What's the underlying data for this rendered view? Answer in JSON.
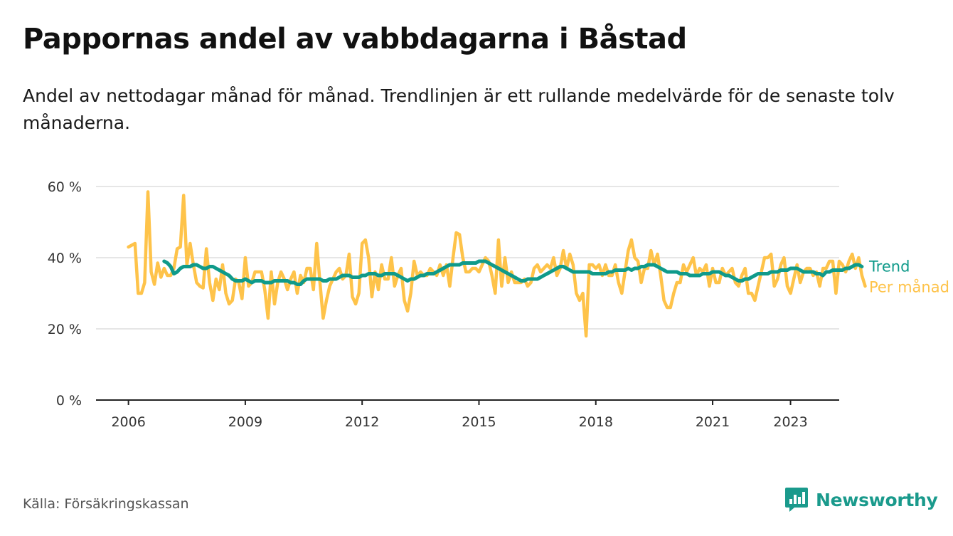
{
  "title": "Pappornas andel av vabbdagarna i Båstad",
  "subtitle": "Andel av nettodagar månad för månad. Trendlinjen är ett rullande medelvärde för de senaste tolv månaderna.",
  "source": "Källa: Försäkringskassan",
  "brand": {
    "name": "Newsworthy",
    "icon": "newsworthy-logo-icon",
    "color": "#1a9a8c"
  },
  "colors": {
    "monthly": "#fec34a",
    "trend": "#0f9a8a",
    "grid": "#dddddd",
    "axis": "#222222"
  },
  "chart_data": {
    "type": "line",
    "title": "Pappornas andel av vabbdagarna i Båstad",
    "x_start": "2006-01",
    "x_step": "month",
    "xlim": [
      "2005-03",
      "2024-04"
    ],
    "ylim": [
      0,
      60
    ],
    "y_ticks": [
      0,
      20,
      40,
      60
    ],
    "y_tick_labels": [
      "0 %",
      "20 %",
      "40 %",
      "60 %"
    ],
    "x_ticks": [
      "2006",
      "2009",
      "2012",
      "2015",
      "2018",
      "2021",
      "2023"
    ],
    "grid": true,
    "legend": "right-end",
    "series": [
      {
        "name": "Per månad",
        "values": [
          43,
          43.5,
          44,
          30,
          30,
          33,
          58.5,
          36,
          32.5,
          38.5,
          34.5,
          37,
          35,
          35,
          37,
          42.5,
          43,
          57.5,
          38,
          44,
          38,
          33,
          32,
          31.5,
          42.5,
          33,
          28,
          34,
          31,
          38,
          30,
          27,
          28,
          34,
          33,
          28.5,
          40,
          32,
          33,
          36,
          36,
          36,
          31,
          23,
          36,
          27,
          33,
          36,
          34,
          31,
          34,
          36,
          30,
          35,
          33,
          37,
          37,
          31,
          44,
          33,
          23,
          28,
          32,
          34,
          36,
          37,
          34,
          35,
          41,
          29,
          27,
          30,
          44,
          45,
          40,
          29,
          36,
          31,
          38,
          34,
          34,
          40,
          32,
          35,
          37,
          28,
          25,
          30,
          39,
          35,
          36,
          35,
          35,
          37,
          36,
          35,
          38,
          35,
          38,
          32,
          40,
          47,
          46.5,
          40,
          36,
          36,
          37,
          37,
          36,
          38,
          40,
          39,
          35,
          30,
          45,
          32,
          40,
          33,
          36,
          33,
          33,
          33,
          34,
          32,
          33,
          37,
          38,
          36,
          37,
          38,
          37,
          40,
          35,
          37,
          42,
          37,
          41,
          38,
          30,
          28,
          30,
          18,
          38,
          38,
          37,
          38,
          35,
          38,
          35,
          35,
          38,
          33,
          30,
          36,
          42,
          45,
          40,
          39,
          33,
          37,
          37,
          42,
          38,
          41,
          35,
          28,
          26,
          26,
          30,
          33,
          33,
          38,
          36,
          38,
          40,
          35,
          37,
          36,
          38,
          32,
          37,
          33,
          33,
          37,
          35,
          36,
          37,
          33,
          32,
          35,
          37,
          30,
          30,
          28,
          32,
          36,
          40,
          40,
          41,
          32,
          34,
          38,
          40,
          32,
          30,
          34,
          38,
          33,
          36,
          37,
          37,
          35,
          36,
          32,
          37,
          37,
          39,
          39,
          30,
          39,
          38,
          36,
          39,
          41,
          37,
          40,
          35,
          32
        ],
        "color": "#fec34a"
      },
      {
        "name": "Trend",
        "values": [
          null,
          null,
          null,
          null,
          null,
          null,
          null,
          null,
          null,
          null,
          null,
          39,
          38.5,
          37.5,
          35.5,
          36,
          37,
          37.5,
          37.5,
          37.5,
          38,
          38,
          37.5,
          37,
          37,
          37.5,
          37.5,
          37,
          36.5,
          36,
          35.5,
          35,
          34,
          33.5,
          33.5,
          33.5,
          34,
          33.5,
          33,
          33.5,
          33.5,
          33.5,
          33,
          33,
          33,
          33.5,
          33.5,
          33.5,
          33.5,
          33.5,
          33,
          33,
          32.5,
          32.5,
          33.5,
          34,
          34,
          34,
          34,
          34,
          33.5,
          33.5,
          34,
          34,
          34,
          34.5,
          35,
          35,
          35,
          34.5,
          34.5,
          34.5,
          35,
          35,
          35.5,
          35.5,
          35.5,
          35,
          35,
          35.5,
          35.5,
          35.5,
          35.5,
          35,
          34.5,
          34,
          33.5,
          34,
          34,
          34.5,
          35,
          35,
          35.5,
          35.5,
          35.5,
          36,
          36.5,
          37,
          37.5,
          38,
          38,
          38,
          38,
          38.5,
          38.5,
          38.5,
          38.5,
          38.5,
          39,
          39,
          39,
          38.5,
          38,
          37.5,
          37,
          36.5,
          36,
          35.5,
          35,
          34.5,
          34,
          33.5,
          33.5,
          34,
          34,
          34,
          34,
          34.5,
          35,
          35.5,
          36,
          36.5,
          37,
          37.5,
          37.5,
          37,
          36.5,
          36,
          36,
          36,
          36,
          36,
          36,
          35.5,
          35.5,
          35.5,
          35.5,
          35.5,
          36,
          36,
          36.5,
          36.5,
          36.5,
          36.5,
          37,
          36.5,
          37,
          37,
          37.5,
          37.5,
          38,
          38,
          38,
          37.5,
          37,
          36.5,
          36,
          36,
          36,
          36,
          35.5,
          35.5,
          35.5,
          35,
          35,
          35,
          35,
          35.5,
          35.5,
          35.5,
          36,
          36,
          36,
          35.5,
          35,
          35,
          34.5,
          34,
          33.5,
          33.5,
          34,
          34,
          34.5,
          35,
          35.5,
          35.5,
          35.5,
          35.5,
          36,
          36,
          36,
          36.5,
          36.5,
          36.5,
          37,
          37,
          37,
          36.5,
          36,
          36,
          36,
          36,
          35.5,
          35.5,
          35,
          36,
          36,
          36.5,
          36.5,
          36.5,
          36.5,
          37,
          37,
          37.5,
          38,
          38,
          37.5
        ],
        "color": "#0f9a8a"
      }
    ]
  }
}
